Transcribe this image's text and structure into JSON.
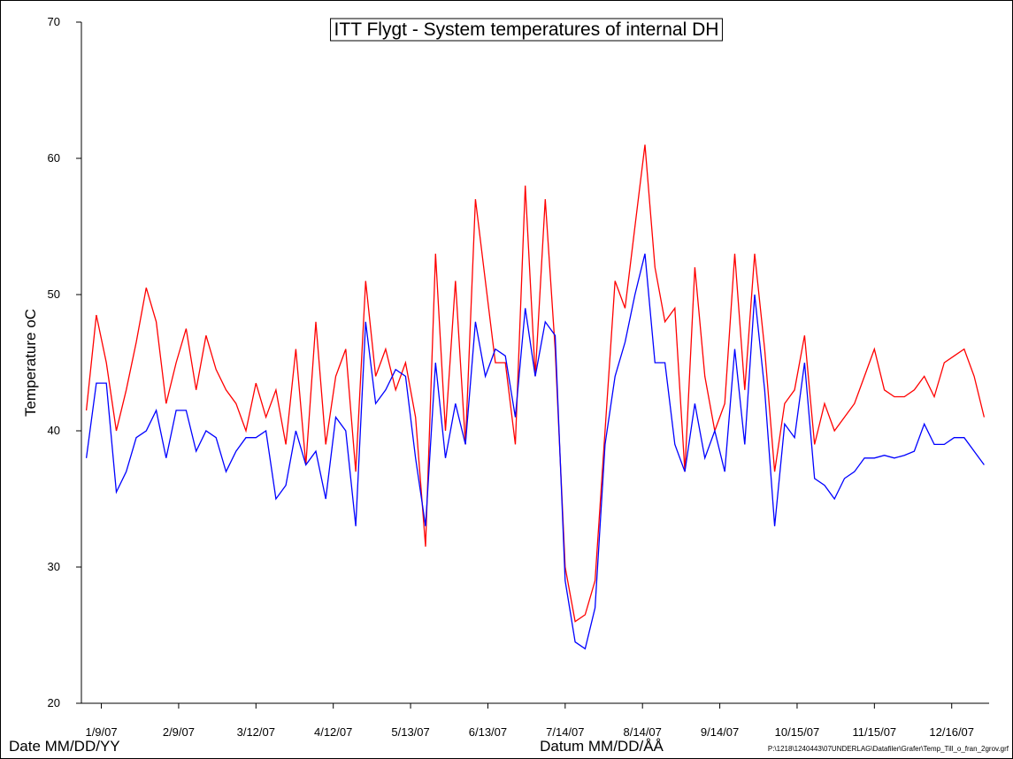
{
  "chart_data": {
    "type": "line",
    "title": "ITT Flygt - System temperatures of internal DH",
    "y_label": "Temperature oC",
    "x_label": "Datum MM/DD/ÅÅ",
    "x_label_left": "Date MM/DD/YY",
    "file_path": "P:\\1218\\1240443\\07UNDERLAG\\Datafiler\\Grafer\\Temp_Till_o_fran_2grov.grf",
    "xlim": [
      "2007-01-01",
      "2007-12-31"
    ],
    "xticks": [
      {
        "value": "2007-01-09",
        "label": "1/9/07"
      },
      {
        "value": "2007-02-09",
        "label": "2/9/07"
      },
      {
        "value": "2007-03-12",
        "label": "3/12/07"
      },
      {
        "value": "2007-04-12",
        "label": "4/12/07"
      },
      {
        "value": "2007-05-13",
        "label": "5/13/07"
      },
      {
        "value": "2007-06-13",
        "label": "6/13/07"
      },
      {
        "value": "2007-07-14",
        "label": "7/14/07"
      },
      {
        "value": "2007-08-14",
        "label": "8/14/07"
      },
      {
        "value": "2007-09-14",
        "label": "9/14/07"
      },
      {
        "value": "2007-10-15",
        "label": "10/15/07"
      },
      {
        "value": "2007-11-15",
        "label": "11/15/07"
      },
      {
        "value": "2007-12-16",
        "label": "12/16/07"
      }
    ],
    "ylim": [
      20,
      70
    ],
    "yticks": [
      20,
      30,
      40,
      50,
      60,
      70
    ],
    "x": [
      "2007-01-03",
      "2007-01-07",
      "2007-01-11",
      "2007-01-15",
      "2007-01-19",
      "2007-01-23",
      "2007-01-27",
      "2007-01-31",
      "2007-02-04",
      "2007-02-08",
      "2007-02-12",
      "2007-02-16",
      "2007-02-20",
      "2007-02-24",
      "2007-02-28",
      "2007-03-04",
      "2007-03-08",
      "2007-03-12",
      "2007-03-16",
      "2007-03-20",
      "2007-03-24",
      "2007-03-28",
      "2007-04-01",
      "2007-04-05",
      "2007-04-09",
      "2007-04-13",
      "2007-04-17",
      "2007-04-21",
      "2007-04-25",
      "2007-04-29",
      "2007-05-03",
      "2007-05-07",
      "2007-05-11",
      "2007-05-15",
      "2007-05-19",
      "2007-05-23",
      "2007-05-27",
      "2007-05-31",
      "2007-06-04",
      "2007-06-08",
      "2007-06-12",
      "2007-06-16",
      "2007-06-20",
      "2007-06-24",
      "2007-06-28",
      "2007-07-02",
      "2007-07-06",
      "2007-07-10",
      "2007-07-14",
      "2007-07-18",
      "2007-07-22",
      "2007-07-26",
      "2007-07-30",
      "2007-08-03",
      "2007-08-07",
      "2007-08-11",
      "2007-08-15",
      "2007-08-19",
      "2007-08-23",
      "2007-08-27",
      "2007-08-31",
      "2007-09-04",
      "2007-09-08",
      "2007-09-12",
      "2007-09-16",
      "2007-09-20",
      "2007-09-24",
      "2007-09-28",
      "2007-10-02",
      "2007-10-06",
      "2007-10-10",
      "2007-10-14",
      "2007-10-18",
      "2007-10-22",
      "2007-10-26",
      "2007-10-30",
      "2007-11-03",
      "2007-11-07",
      "2007-11-11",
      "2007-11-15",
      "2007-11-19",
      "2007-11-23",
      "2007-11-27",
      "2007-12-01",
      "2007-12-05",
      "2007-12-09",
      "2007-12-13",
      "2007-12-17",
      "2007-12-21",
      "2007-12-25",
      "2007-12-29"
    ],
    "series": [
      {
        "color": "#ff0000",
        "values": [
          41.5,
          48.5,
          45,
          40,
          43,
          46.5,
          50.5,
          48,
          42,
          45,
          47.5,
          43,
          47,
          44.5,
          43,
          42,
          40,
          43.5,
          41,
          43,
          39,
          46,
          37.5,
          48,
          39,
          44,
          46,
          37,
          51,
          44,
          46,
          43,
          45,
          41,
          31.5,
          53,
          40,
          51,
          39,
          57,
          51,
          45,
          45,
          39,
          58,
          44,
          57,
          46,
          30,
          26,
          26.5,
          29,
          40,
          51,
          49,
          55,
          61,
          52,
          48,
          49,
          37,
          52,
          44,
          40,
          42,
          53,
          43,
          53,
          46,
          37,
          42,
          43,
          47,
          39,
          42,
          40,
          41,
          42,
          44,
          46,
          43,
          42.5,
          42.5,
          43,
          44,
          42.5,
          45,
          45.5,
          46,
          44,
          41
        ]
      },
      {
        "color": "#0000ff",
        "values": [
          38,
          43.5,
          43.5,
          35.5,
          37,
          39.5,
          40,
          41.5,
          38,
          41.5,
          41.5,
          38.5,
          40,
          39.5,
          37,
          38.5,
          39.5,
          39.5,
          40,
          35,
          36,
          40,
          37.5,
          38.5,
          35,
          41,
          40,
          33,
          48,
          42,
          43,
          44.5,
          44,
          38,
          33,
          45,
          38,
          42,
          39,
          48,
          44,
          46,
          45.5,
          41,
          49,
          44,
          48,
          47,
          29,
          24.5,
          24,
          27,
          39,
          44,
          46.5,
          50,
          53,
          45,
          45,
          39,
          37,
          42,
          38,
          40,
          37,
          46,
          39,
          50,
          43,
          33,
          40.5,
          39.5,
          45,
          36.5,
          36,
          35,
          36.5,
          37,
          38,
          38,
          38.2,
          38,
          38.2,
          38.5,
          40.5,
          39,
          39,
          39.5,
          39.5,
          38.5,
          37.5
        ]
      }
    ]
  }
}
